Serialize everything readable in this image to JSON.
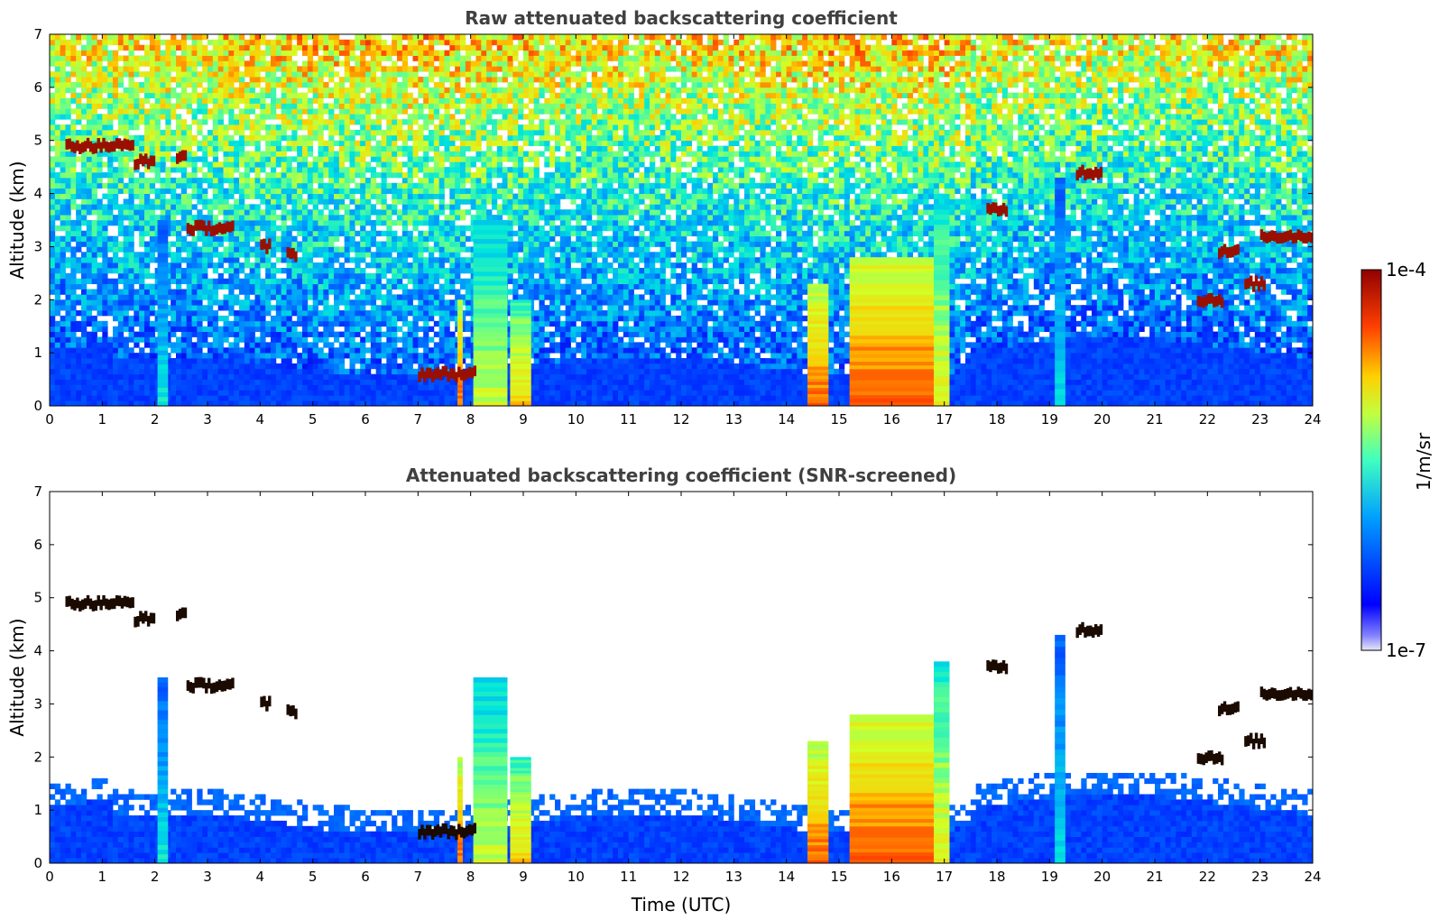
{
  "chart_data": [
    {
      "type": "heatmap",
      "title": "Raw attenuated backscattering coefficient",
      "xlabel": "",
      "ylabel": "Altitude (km)",
      "xlim": [
        0,
        24
      ],
      "ylim": [
        0,
        7
      ],
      "xticks": [
        "0",
        "1",
        "2",
        "3",
        "4",
        "5",
        "6",
        "7",
        "8",
        "9",
        "10",
        "11",
        "12",
        "13",
        "14",
        "15",
        "16",
        "17",
        "18",
        "19",
        "20",
        "21",
        "22",
        "23",
        "24"
      ],
      "yticks": [
        "0",
        "1",
        "2",
        "3",
        "4",
        "5",
        "6",
        "7"
      ],
      "screened": false,
      "layers": [
        {
          "t0": 0.3,
          "t1": 1.6,
          "alt": 4.9
        },
        {
          "t0": 1.6,
          "t1": 2.0,
          "alt": 4.6
        },
        {
          "t0": 2.4,
          "t1": 2.6,
          "alt": 4.7
        },
        {
          "t0": 2.6,
          "t1": 3.5,
          "alt": 3.35
        },
        {
          "t0": 4.0,
          "t1": 4.2,
          "alt": 3.0
        },
        {
          "t0": 4.5,
          "t1": 4.7,
          "alt": 2.85
        },
        {
          "t0": 7.0,
          "t1": 8.1,
          "alt": 0.6
        },
        {
          "t0": 17.8,
          "t1": 18.2,
          "alt": 3.7
        },
        {
          "t0": 19.5,
          "t1": 20.0,
          "alt": 4.4
        },
        {
          "t0": 21.8,
          "t1": 22.3,
          "alt": 2.0
        },
        {
          "t0": 22.2,
          "t1": 22.6,
          "alt": 2.9
        },
        {
          "t0": 22.7,
          "t1": 23.1,
          "alt": 2.3
        },
        {
          "t0": 23.0,
          "t1": 24.0,
          "alt": 3.2
        }
      ],
      "columns": [
        {
          "t0": 2.05,
          "t1": 2.25,
          "top": 3.5,
          "intensity": 0.45
        },
        {
          "t0": 7.75,
          "t1": 7.85,
          "top": 2.0,
          "intensity": 0.85
        },
        {
          "t0": 8.05,
          "t1": 8.7,
          "top": 3.5,
          "intensity": 0.65
        },
        {
          "t0": 8.75,
          "t1": 9.15,
          "top": 2.0,
          "intensity": 0.75
        },
        {
          "t0": 14.4,
          "t1": 14.8,
          "top": 2.3,
          "intensity": 0.85
        },
        {
          "t0": 15.2,
          "t1": 16.8,
          "top": 2.8,
          "intensity": 0.88
        },
        {
          "t0": 16.8,
          "t1": 17.1,
          "top": 3.8,
          "intensity": 0.7
        },
        {
          "t0": 19.1,
          "t1": 19.3,
          "top": 4.3,
          "intensity": 0.45
        }
      ]
    },
    {
      "type": "heatmap",
      "title": "Attenuated backscattering coefficient (SNR-screened)",
      "xlabel": "Time (UTC)",
      "ylabel": "Altitude (km)",
      "xlim": [
        0,
        24
      ],
      "ylim": [
        0,
        7
      ],
      "xticks": [
        "0",
        "1",
        "2",
        "3",
        "4",
        "5",
        "6",
        "7",
        "8",
        "9",
        "10",
        "11",
        "12",
        "13",
        "14",
        "15",
        "16",
        "17",
        "18",
        "19",
        "20",
        "21",
        "22",
        "23",
        "24"
      ],
      "yticks": [
        "0",
        "1",
        "2",
        "3",
        "4",
        "5",
        "6",
        "7"
      ],
      "screened": true,
      "layers": [
        {
          "t0": 0.3,
          "t1": 1.6,
          "alt": 4.9
        },
        {
          "t0": 1.6,
          "t1": 2.0,
          "alt": 4.6
        },
        {
          "t0": 2.4,
          "t1": 2.6,
          "alt": 4.7
        },
        {
          "t0": 2.6,
          "t1": 3.5,
          "alt": 3.35
        },
        {
          "t0": 4.0,
          "t1": 4.2,
          "alt": 3.0
        },
        {
          "t0": 4.5,
          "t1": 4.7,
          "alt": 2.85
        },
        {
          "t0": 7.0,
          "t1": 8.1,
          "alt": 0.6
        },
        {
          "t0": 17.8,
          "t1": 18.2,
          "alt": 3.7
        },
        {
          "t0": 19.5,
          "t1": 20.0,
          "alt": 4.4
        },
        {
          "t0": 21.8,
          "t1": 22.3,
          "alt": 2.0
        },
        {
          "t0": 22.2,
          "t1": 22.6,
          "alt": 2.9
        },
        {
          "t0": 22.7,
          "t1": 23.1,
          "alt": 2.3
        },
        {
          "t0": 23.0,
          "t1": 24.0,
          "alt": 3.2
        }
      ],
      "columns": [
        {
          "t0": 2.05,
          "t1": 2.25,
          "top": 3.5,
          "intensity": 0.45
        },
        {
          "t0": 7.75,
          "t1": 7.85,
          "top": 2.0,
          "intensity": 0.85
        },
        {
          "t0": 8.05,
          "t1": 8.7,
          "top": 3.5,
          "intensity": 0.65
        },
        {
          "t0": 8.75,
          "t1": 9.15,
          "top": 2.0,
          "intensity": 0.75
        },
        {
          "t0": 14.4,
          "t1": 14.8,
          "top": 2.3,
          "intensity": 0.85
        },
        {
          "t0": 15.2,
          "t1": 16.8,
          "top": 2.8,
          "intensity": 0.88
        },
        {
          "t0": 16.8,
          "t1": 17.1,
          "top": 3.8,
          "intensity": 0.7
        },
        {
          "t0": 19.1,
          "t1": 19.3,
          "top": 4.3,
          "intensity": 0.45
        }
      ]
    }
  ],
  "colorbar": {
    "label": "1/m/sr",
    "max_label": "1e-4",
    "min_label": "1e-7",
    "colormap": "jet",
    "colors": [
      "#e8e8f8",
      "#0000ff",
      "#00c8ff",
      "#ffff00",
      "#ff6000",
      "#900000"
    ]
  }
}
